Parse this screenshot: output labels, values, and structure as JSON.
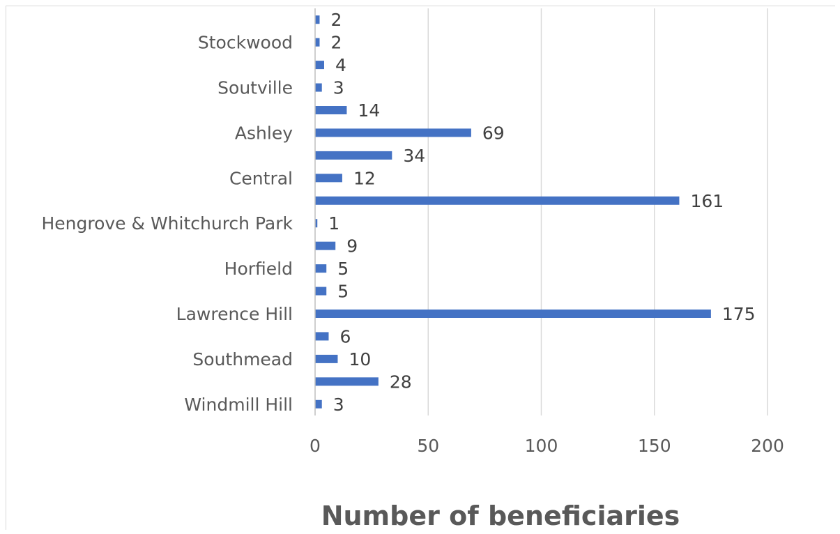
{
  "chart_data": {
    "type": "bar",
    "orientation": "horizontal",
    "categories": [
      "Windmill Hill",
      "",
      "Southmead",
      "",
      "Lawrence Hill",
      "",
      "Horfield",
      "",
      "Hengrove & Whitchurch Park",
      "",
      "Central",
      "",
      "Ashley",
      "",
      "Soutville",
      "",
      "Stockwood",
      ""
    ],
    "values": [
      3,
      28,
      10,
      6,
      175,
      5,
      5,
      9,
      1,
      161,
      12,
      34,
      69,
      14,
      3,
      4,
      2,
      2
    ],
    "xlabel": "Number of beneficiaries",
    "xlim": [
      0,
      200
    ],
    "xticks": [
      0,
      50,
      100,
      150,
      200
    ],
    "grid": true,
    "bar_color": "#4472c4"
  }
}
